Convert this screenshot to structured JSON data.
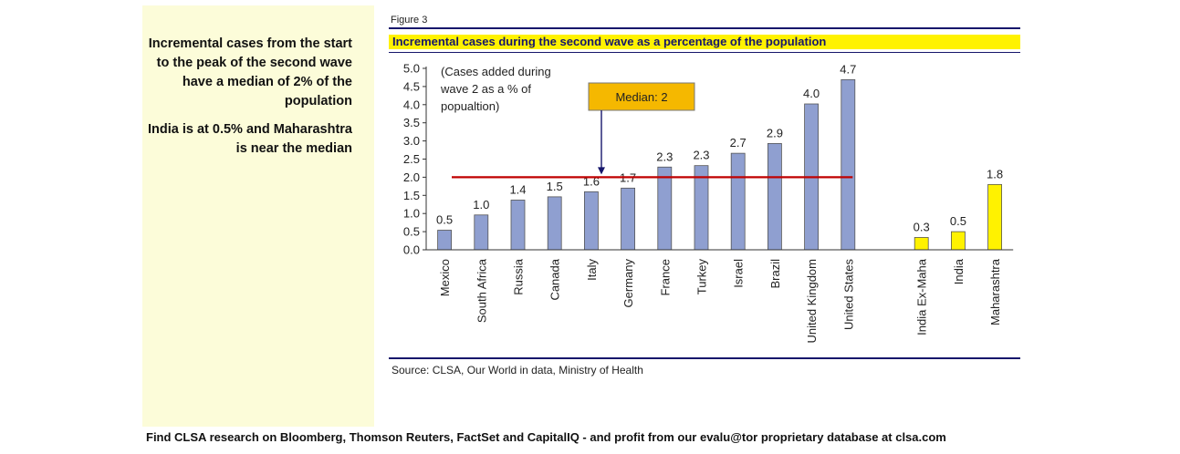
{
  "side_notes": {
    "para1": "Incremental cases from the start to the peak of the second wave have a median of 2% of the population",
    "para2": "India is at 0.5% and Maharashtra is near the median"
  },
  "figure_label": "Figure 3",
  "source": "Source: CLSA, Our World in data, Ministry of Health",
  "footer": "Find CLSA research on Bloomberg, Thomson Reuters, FactSet and CapitalIQ - and profit from our evalu@tor proprietary database at clsa.com",
  "colors": {
    "bar_main": "#8f9fd0",
    "bar_highlight": "#fff200",
    "median_line": "#c00000",
    "callout_fill": "#f5b800",
    "title_band": "#fff200",
    "navy": "#16166b"
  },
  "chart_data": {
    "type": "bar",
    "title": "Incremental cases during the second wave as a percentage of the population",
    "ylim": [
      0,
      5
    ],
    "yticks": [
      "0.0",
      "0.5",
      "1.0",
      "1.5",
      "2.0",
      "2.5",
      "3.0",
      "3.5",
      "4.0",
      "4.5",
      "5.0"
    ],
    "annotation": [
      "(Cases added during",
      "wave 2 as a % of",
      "popualtion)"
    ],
    "median": {
      "value": 2,
      "label": "Median: 2"
    },
    "groups": [
      {
        "style": "main",
        "categories": [
          "Mexico",
          "South Africa",
          "Russia",
          "Canada",
          "Italy",
          "Germany",
          "France",
          "Turkey",
          "Israel",
          "Brazil",
          "United Kingdom",
          "United States"
        ],
        "values": [
          0.54,
          0.96,
          1.37,
          1.46,
          1.6,
          1.7,
          2.28,
          2.32,
          2.66,
          2.93,
          4.02,
          4.69
        ],
        "labels": [
          "0.5",
          "1.0",
          "1.4",
          "1.5",
          "1.6",
          "1.7",
          "2.3",
          "2.3",
          "2.7",
          "2.9",
          "4.0",
          "4.7"
        ]
      },
      {
        "style": "highlight",
        "categories": [
          "India Ex-Maha",
          "India",
          "Maharashtra"
        ],
        "values": [
          0.34,
          0.5,
          1.8
        ],
        "labels": [
          "0.3",
          "0.5",
          "1.8"
        ]
      }
    ]
  }
}
